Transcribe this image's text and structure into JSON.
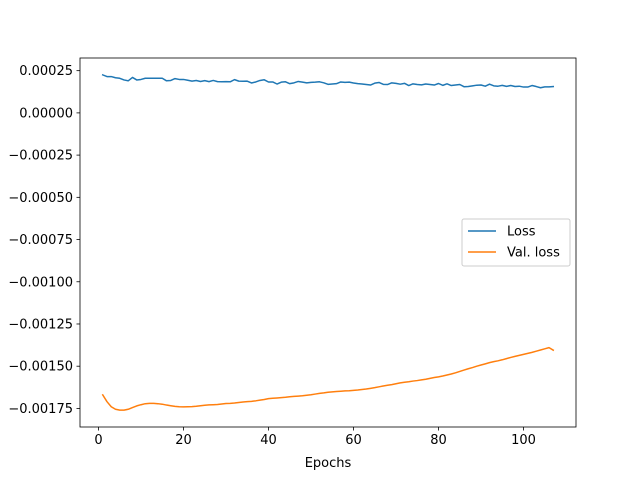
{
  "chart_data": {
    "type": "line",
    "title": "",
    "xlabel": "Epochs",
    "ylabel": "",
    "xlim": [
      -4.35,
      112.35
    ],
    "ylim": [
      -0.00186,
      0.000325
    ],
    "x_ticks": [
      0,
      20,
      40,
      60,
      80,
      100
    ],
    "x_tick_labels": [
      "0",
      "20",
      "40",
      "60",
      "80",
      "100"
    ],
    "y_ticks": [
      0.00025,
      0.0,
      -0.00025,
      -0.0005,
      -0.00075,
      -0.001,
      -0.00125,
      -0.0015,
      -0.00175
    ],
    "y_tick_labels": [
      "0.00025",
      "0.00000",
      "−0.00025",
      "−0.00050",
      "−0.00075",
      "−0.00100",
      "−0.00125",
      "−0.00150",
      "−0.00175"
    ],
    "grid": false,
    "legend_position": "center-right",
    "series": [
      {
        "name": "Loss",
        "color": "#1f77b4",
        "x": [
          1,
          2,
          3,
          4,
          5,
          6,
          7,
          8,
          9,
          10,
          11,
          12,
          13,
          14,
          15,
          16,
          17,
          18,
          19,
          20,
          21,
          22,
          23,
          24,
          25,
          26,
          27,
          28,
          29,
          30,
          31,
          32,
          33,
          34,
          35,
          36,
          37,
          38,
          39,
          40,
          41,
          42,
          43,
          44,
          45,
          46,
          47,
          48,
          49,
          50,
          51,
          52,
          53,
          54,
          55,
          56,
          57,
          58,
          59,
          60,
          61,
          62,
          63,
          64,
          65,
          66,
          67,
          68,
          69,
          70,
          71,
          72,
          73,
          74,
          75,
          76,
          77,
          78,
          79,
          80,
          81,
          82,
          83,
          84,
          85,
          86,
          87,
          88,
          89,
          90,
          91,
          92,
          93,
          94,
          95,
          96,
          97,
          98,
          99,
          100,
          101,
          102,
          103,
          104,
          105,
          106,
          107
        ],
        "values": [
          0.000225,
          0.000215,
          0.000215,
          0.000208,
          0.000205,
          0.000195,
          0.00019,
          0.00021,
          0.000195,
          0.000198,
          0.000205,
          0.000205,
          0.000205,
          0.000205,
          0.000205,
          0.00019,
          0.000192,
          0.000203,
          0.000198,
          0.000198,
          0.000193,
          0.000188,
          0.000192,
          0.000186,
          0.000191,
          0.000185,
          0.000192,
          0.000185,
          0.000184,
          0.000185,
          0.000184,
          0.000197,
          0.000188,
          0.000187,
          0.000188,
          0.000177,
          0.000183,
          0.000192,
          0.000196,
          0.000183,
          0.000183,
          0.000171,
          0.000182,
          0.000184,
          0.000173,
          0.000178,
          0.000186,
          0.000182,
          0.000178,
          0.000181,
          0.000182,
          0.000184,
          0.000178,
          0.000169,
          0.000171,
          0.000173,
          0.000183,
          0.000181,
          0.000182,
          0.000177,
          0.000173,
          0.000171,
          0.000168,
          0.000165,
          0.000176,
          0.00018,
          0.000169,
          0.000168,
          0.000178,
          0.000175,
          0.00017,
          0.000175,
          0.000162,
          0.000172,
          0.000168,
          0.000166,
          0.000171,
          0.000168,
          0.000165,
          0.000174,
          0.000163,
          0.000172,
          0.000162,
          0.000165,
          0.000168,
          0.000155,
          0.000156,
          0.00016,
          0.000164,
          0.000165,
          0.000158,
          0.00017,
          0.00016,
          0.000158,
          0.000163,
          0.000157,
          0.000162,
          0.000156,
          0.000158,
          0.000153,
          0.000153,
          0.000162,
          0.000156,
          0.000149,
          0.000154,
          0.000154,
          0.000156
        ]
      },
      {
        "name": "Val. loss",
        "color": "#ff7f0e",
        "x": [
          1,
          2,
          3,
          4,
          5,
          6,
          7,
          8,
          9,
          10,
          11,
          12,
          13,
          14,
          15,
          16,
          17,
          18,
          19,
          20,
          21,
          22,
          23,
          24,
          25,
          26,
          27,
          28,
          29,
          30,
          31,
          32,
          33,
          34,
          35,
          36,
          37,
          38,
          39,
          40,
          41,
          42,
          43,
          44,
          45,
          46,
          47,
          48,
          49,
          50,
          51,
          52,
          53,
          54,
          55,
          56,
          57,
          58,
          59,
          60,
          61,
          62,
          63,
          64,
          65,
          66,
          67,
          68,
          69,
          70,
          71,
          72,
          73,
          74,
          75,
          76,
          77,
          78,
          79,
          80,
          81,
          82,
          83,
          84,
          85,
          86,
          87,
          88,
          89,
          90,
          91,
          92,
          93,
          94,
          95,
          96,
          97,
          98,
          99,
          100,
          101,
          102,
          103,
          104,
          105,
          106,
          107
        ],
        "values": [
          -0.00167,
          -0.00171,
          -0.00174,
          -0.001755,
          -0.00176,
          -0.00176,
          -0.001755,
          -0.001745,
          -0.001735,
          -0.001728,
          -0.001722,
          -0.00172,
          -0.00172,
          -0.001722,
          -0.001725,
          -0.00173,
          -0.001734,
          -0.001738,
          -0.00174,
          -0.001741,
          -0.00174,
          -0.001739,
          -0.001737,
          -0.001734,
          -0.001731,
          -0.001729,
          -0.001728,
          -0.001727,
          -0.001724,
          -0.001721,
          -0.00172,
          -0.001718,
          -0.001715,
          -0.001712,
          -0.00171,
          -0.001708,
          -0.001705,
          -0.001701,
          -0.001697,
          -0.001692,
          -0.00169,
          -0.001688,
          -0.001686,
          -0.001684,
          -0.001681,
          -0.001679,
          -0.001677,
          -0.001675,
          -0.001672,
          -0.001669,
          -0.001665,
          -0.001661,
          -0.001658,
          -0.001654,
          -0.001652,
          -0.00165,
          -0.001648,
          -0.001646,
          -0.001645,
          -0.001643,
          -0.001641,
          -0.001638,
          -0.001635,
          -0.001631,
          -0.001627,
          -0.001622,
          -0.001617,
          -0.001613,
          -0.001609,
          -0.001604,
          -0.001599,
          -0.001595,
          -0.001592,
          -0.001588,
          -0.001585,
          -0.001581,
          -0.001577,
          -0.001572,
          -0.001567,
          -0.001563,
          -0.001558,
          -0.001552,
          -0.001546,
          -0.001539,
          -0.001531,
          -0.001523,
          -0.001515,
          -0.001508,
          -0.0015,
          -0.001493,
          -0.001486,
          -0.001479,
          -0.001473,
          -0.001468,
          -0.001462,
          -0.001455,
          -0.001448,
          -0.001442,
          -0.001436,
          -0.00143,
          -0.001424,
          -0.001418,
          -0.001411,
          -0.001404,
          -0.001397,
          -0.00139,
          -0.001405
        ]
      }
    ]
  }
}
